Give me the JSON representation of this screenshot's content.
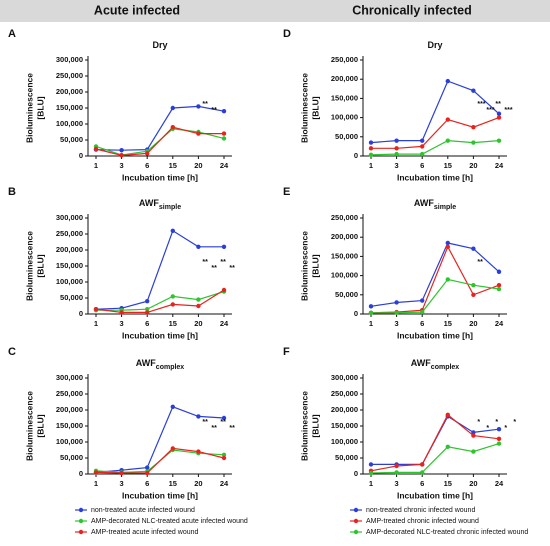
{
  "headers": [
    "Acute infected",
    "Chronically infected"
  ],
  "chart_data": [
    {
      "type": "line",
      "panel": "A",
      "title": "Dry",
      "title_sub": null,
      "x_label": "Incubation time [h]",
      "y_label": [
        "Bioluminescence",
        "[BLU]"
      ],
      "categories": [
        "1",
        "3",
        "6",
        "15",
        "20",
        "24"
      ],
      "ylim": [
        0,
        300000
      ],
      "yticks": [
        0,
        {
          "value": 50000,
          "label": "50,000"
        },
        {
          "value": 100000,
          "label": "100,000"
        },
        {
          "value": 150000,
          "label": "150,000"
        },
        {
          "value": 200000,
          "label": "200,000"
        },
        {
          "value": 250000,
          "label": "250,000"
        },
        {
          "value": 300000,
          "label": "300,000"
        }
      ],
      "series": [
        {
          "color": "#2a3fd8",
          "values": [
            20000,
            18000,
            20000,
            150000,
            155000,
            140000
          ]
        },
        {
          "color": "#2ec42e",
          "values": [
            30000,
            3000,
            15000,
            85000,
            75000,
            55000
          ]
        },
        {
          "color": "#e8231f",
          "values": [
            22000,
            2000,
            8000,
            90000,
            70000,
            70000
          ]
        }
      ],
      "annotations": [
        "**",
        "**"
      ]
    },
    {
      "type": "line",
      "panel": "B",
      "title": "AWF",
      "title_sub": "simple",
      "x_label": "Incubation time [h]",
      "y_label": [
        "Bioluminescence",
        "[BLU]"
      ],
      "categories": [
        "1",
        "3",
        "6",
        "15",
        "20",
        "24"
      ],
      "ylim": [
        0,
        300000
      ],
      "yticks": [
        0,
        {
          "value": 50000,
          "label": "50,000"
        },
        {
          "value": 100000,
          "label": "100,000"
        },
        {
          "value": 150000,
          "label": "150,000"
        },
        {
          "value": 200000,
          "label": "200,000"
        },
        {
          "value": 250000,
          "label": "250,000"
        },
        {
          "value": 300000,
          "label": "300,000"
        }
      ],
      "series": [
        {
          "color": "#2a3fd8",
          "values": [
            15000,
            18000,
            40000,
            260000,
            210000,
            210000
          ]
        },
        {
          "color": "#2ec42e",
          "values": [
            12000,
            12000,
            15000,
            55000,
            45000,
            70000
          ]
        },
        {
          "color": "#e8231f",
          "values": [
            15000,
            5000,
            5000,
            30000,
            25000,
            75000
          ]
        }
      ],
      "annotations": [
        "**",
        "**",
        "**",
        "**"
      ]
    },
    {
      "type": "line",
      "panel": "C",
      "title": "AWF",
      "title_sub": "complex",
      "x_label": "Incubation time [h]",
      "y_label": [
        "Bioluminescence",
        "[BLU]"
      ],
      "categories": [
        "1",
        "3",
        "6",
        "15",
        "20",
        "24"
      ],
      "ylim": [
        0,
        300000
      ],
      "yticks": [
        0,
        {
          "value": 50000,
          "label": "50,000"
        },
        {
          "value": 100000,
          "label": "100,000"
        },
        {
          "value": 150000,
          "label": "150,000"
        },
        {
          "value": 200000,
          "label": "200,000"
        },
        {
          "value": 250000,
          "label": "250,000"
        },
        {
          "value": 300000,
          "label": "300,000"
        }
      ],
      "series": [
        {
          "name": "non-treated acute infected wound",
          "color": "#2a3fd8",
          "values": [
            5000,
            12000,
            20000,
            210000,
            180000,
            175000
          ]
        },
        {
          "name": "AMP-decorated NLC-treated acute infected wound",
          "color": "#2ec42e",
          "values": [
            10000,
            5000,
            8000,
            75000,
            65000,
            60000
          ]
        },
        {
          "name": "AMP-treated acute infected wound",
          "color": "#e8231f",
          "values": [
            5000,
            3000,
            3000,
            80000,
            70000,
            50000
          ]
        }
      ],
      "annotations": [
        "**",
        "**",
        "**",
        "**"
      ]
    },
    {
      "type": "line",
      "panel": "D",
      "title": "Dry",
      "title_sub": null,
      "x_label": "Incubation time [h]",
      "y_label": [
        "Bioluminescence",
        "[BLU]"
      ],
      "categories": [
        "1",
        "3",
        "6",
        "15",
        "20",
        "24"
      ],
      "ylim": [
        0,
        250000
      ],
      "yticks": [
        0,
        {
          "value": 50000,
          "label": "50,000"
        },
        {
          "value": 100000,
          "label": "100,000"
        },
        {
          "value": 150000,
          "label": "150,000"
        },
        {
          "value": 200000,
          "label": "200,000"
        },
        {
          "value": 250000,
          "label": "250,000"
        }
      ],
      "series": [
        {
          "color": "#2a3fd8",
          "values": [
            35000,
            40000,
            40000,
            195000,
            170000,
            110000
          ]
        },
        {
          "color": "#e8231f",
          "values": [
            20000,
            20000,
            25000,
            95000,
            75000,
            100000
          ]
        },
        {
          "color": "#2ec42e",
          "values": [
            3000,
            5000,
            5000,
            40000,
            35000,
            40000
          ]
        }
      ],
      "annotations": [
        "***",
        "***",
        "**",
        "***"
      ]
    },
    {
      "type": "line",
      "panel": "E",
      "title": "AWF",
      "title_sub": "simple",
      "x_label": "Incubation time [h]",
      "y_label": [
        "Bioluminescence",
        "[BLU]"
      ],
      "categories": [
        "1",
        "3",
        "6",
        "15",
        "20",
        "24"
      ],
      "ylim": [
        0,
        250000
      ],
      "yticks": [
        0,
        {
          "value": 50000,
          "label": "50,000"
        },
        {
          "value": 100000,
          "label": "100,000"
        },
        {
          "value": 150000,
          "label": "150,000"
        },
        {
          "value": 200000,
          "label": "200,000"
        },
        {
          "value": 250000,
          "label": "250,000"
        }
      ],
      "series": [
        {
          "color": "#2a3fd8",
          "values": [
            20000,
            30000,
            35000,
            185000,
            170000,
            110000
          ]
        },
        {
          "color": "#e8231f",
          "values": [
            3000,
            5000,
            10000,
            175000,
            50000,
            75000
          ]
        },
        {
          "color": "#2ec42e",
          "values": [
            3000,
            3000,
            5000,
            90000,
            75000,
            65000
          ]
        }
      ],
      "annotations": [
        "**"
      ]
    },
    {
      "type": "line",
      "panel": "F",
      "title": "AWF",
      "title_sub": "complex",
      "x_label": "Incubation time [h]",
      "y_label": [
        "Bioluminescence",
        "[BLU]"
      ],
      "categories": [
        "1",
        "3",
        "6",
        "15",
        "20",
        "24"
      ],
      "ylim": [
        0,
        300000
      ],
      "yticks": [
        0,
        {
          "value": 50000,
          "label": "50,000"
        },
        {
          "value": 100000,
          "label": "100,000"
        },
        {
          "value": 150000,
          "label": "150,000"
        },
        {
          "value": 200000,
          "label": "200,000"
        },
        {
          "value": 250000,
          "label": "250,000"
        },
        {
          "value": 300000,
          "label": "300,000"
        }
      ],
      "series": [
        {
          "name": "non-treated chronic infected wound",
          "color": "#2a3fd8",
          "values": [
            30000,
            30000,
            30000,
            180000,
            130000,
            140000
          ]
        },
        {
          "name": "AMP-treated chronic infected wound",
          "color": "#e8231f",
          "values": [
            10000,
            25000,
            30000,
            185000,
            120000,
            110000
          ]
        },
        {
          "name": "AMP-decorated NLC-treated chronic infected wound",
          "color": "#2ec42e",
          "values": [
            3000,
            5000,
            5000,
            85000,
            70000,
            95000
          ]
        }
      ],
      "annotations": [
        "*",
        "*",
        "*",
        "*",
        "*"
      ]
    }
  ]
}
